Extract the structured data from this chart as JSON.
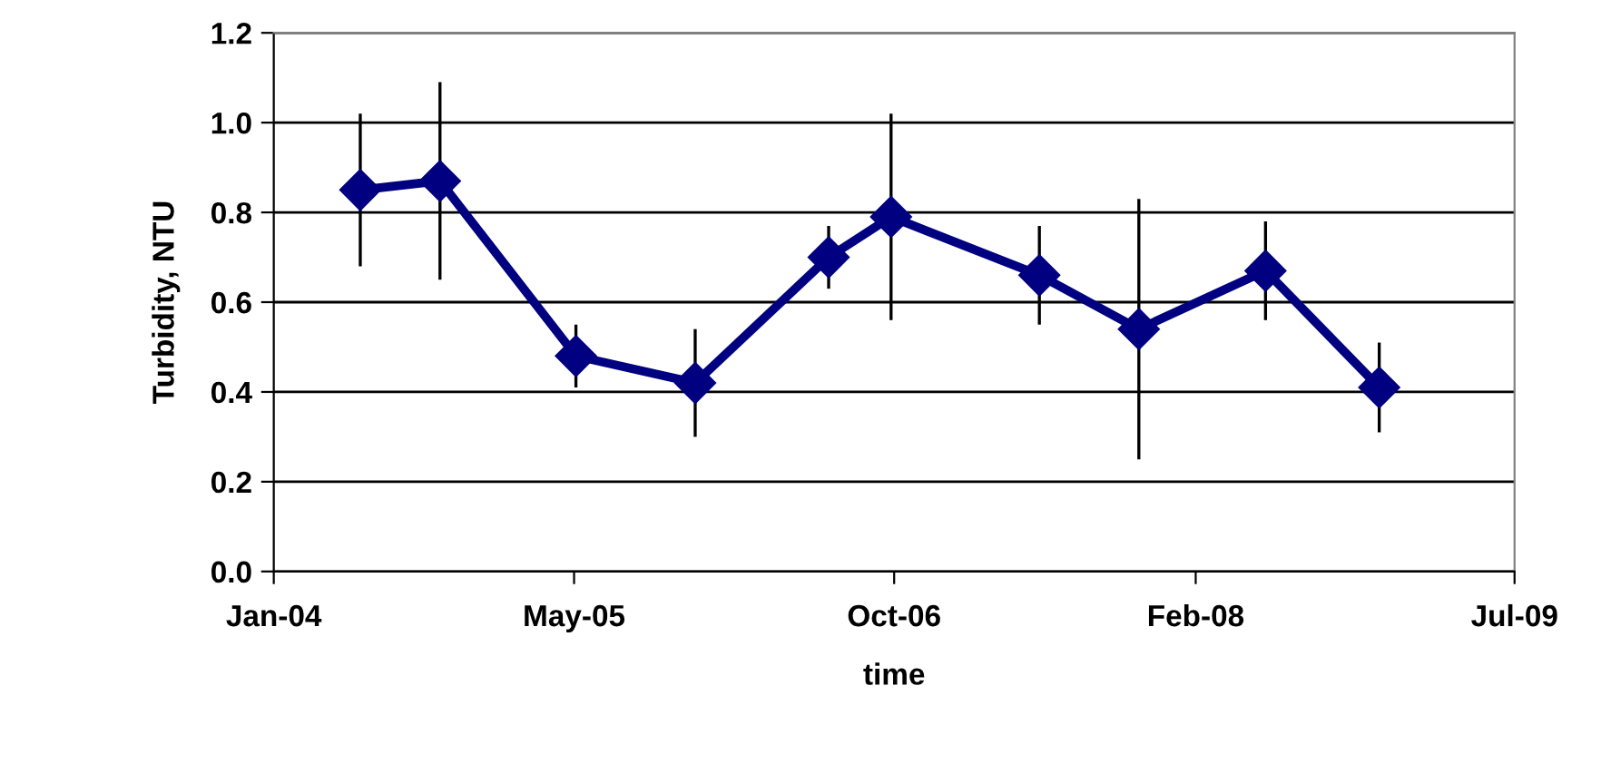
{
  "chart_data": {
    "type": "line",
    "xlabel": "time",
    "ylabel": "Turbidity, NTU",
    "x": [
      "2004-05-20",
      "2004-09-26",
      "2005-05-04",
      "2005-11-13",
      "2006-06-17",
      "2006-09-26",
      "2007-05-24",
      "2007-11-01",
      "2008-05-24",
      "2008-11-24"
    ],
    "series": [
      {
        "color": "#000080",
        "values": [
          0.85,
          0.87,
          0.48,
          0.42,
          0.7,
          0.79,
          0.66,
          0.54,
          0.67,
          0.41
        ],
        "errors": [
          0.17,
          0.22,
          0.07,
          0.12,
          0.07,
          0.23,
          0.11,
          0.29,
          0.11,
          0.1
        ]
      }
    ],
    "xlim": [
      "2004-01-01",
      "2009-07-01"
    ],
    "xticks": [
      {
        "value": "2004-01-01",
        "label": "Jan-04"
      },
      {
        "value": "2005-05-01",
        "label": "May-05"
      },
      {
        "value": "2006-10-01",
        "label": "Oct-06"
      },
      {
        "value": "2008-02-01",
        "label": "Feb-08"
      },
      {
        "value": "2009-07-01",
        "label": "Jul-09"
      }
    ],
    "ylim": [
      0,
      1.2
    ],
    "yticks": [
      {
        "value": 0,
        "label": "0.0"
      },
      {
        "value": 0.2,
        "label": "0.2"
      },
      {
        "value": 0.4,
        "label": "0.4"
      },
      {
        "value": 0.6,
        "label": "0.6"
      },
      {
        "value": 0.8,
        "label": "0.8"
      },
      {
        "value": 1.0,
        "label": "1.0"
      },
      {
        "value": 1.2,
        "label": "1.2"
      }
    ],
    "grid": "y",
    "marker": "diamond",
    "line_style": "solid"
  }
}
